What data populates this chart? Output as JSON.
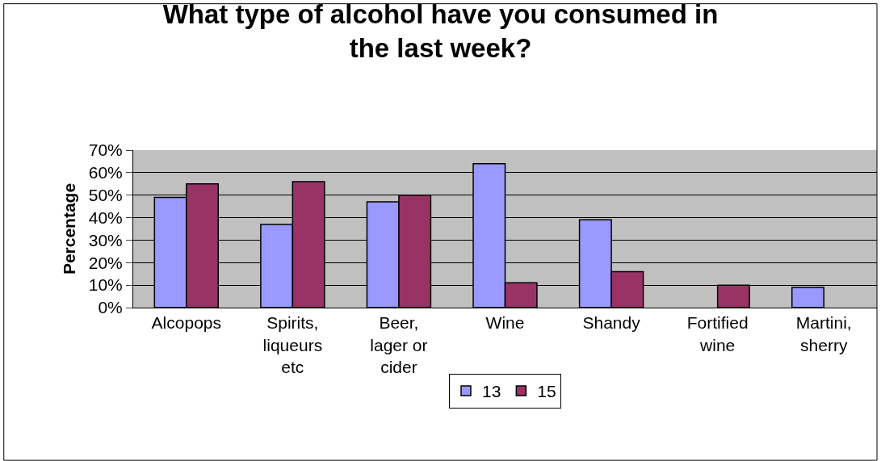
{
  "chart_data": {
    "type": "bar",
    "title": "What type of alcohol have you consumed in\nthe last week?",
    "ylabel": "Percentage",
    "categories": [
      "Alcopops",
      "Spirits,\nliqueurs\netc",
      "Beer,\nlager or\ncider",
      "Wine",
      "Shandy",
      "Fortified\nwine",
      "Martini,\nsherry"
    ],
    "series": [
      {
        "name": "13",
        "color": "#9999ff",
        "values": [
          49,
          37,
          47,
          64,
          39,
          null,
          9
        ]
      },
      {
        "name": "15",
        "color": "#993366",
        "values": [
          55,
          56,
          50,
          11,
          16,
          10,
          null
        ]
      }
    ],
    "ylim": [
      0,
      70
    ],
    "yticks": [
      {
        "value": 0,
        "label": "0%"
      },
      {
        "value": 10,
        "label": "10%"
      },
      {
        "value": 20,
        "label": "20%"
      },
      {
        "value": 30,
        "label": "30%"
      },
      {
        "value": 40,
        "label": "40%"
      },
      {
        "value": 50,
        "label": "50%"
      },
      {
        "value": 60,
        "label": "60%"
      },
      {
        "value": 70,
        "label": "70%"
      }
    ],
    "grid": "y",
    "legend": "bottom"
  }
}
